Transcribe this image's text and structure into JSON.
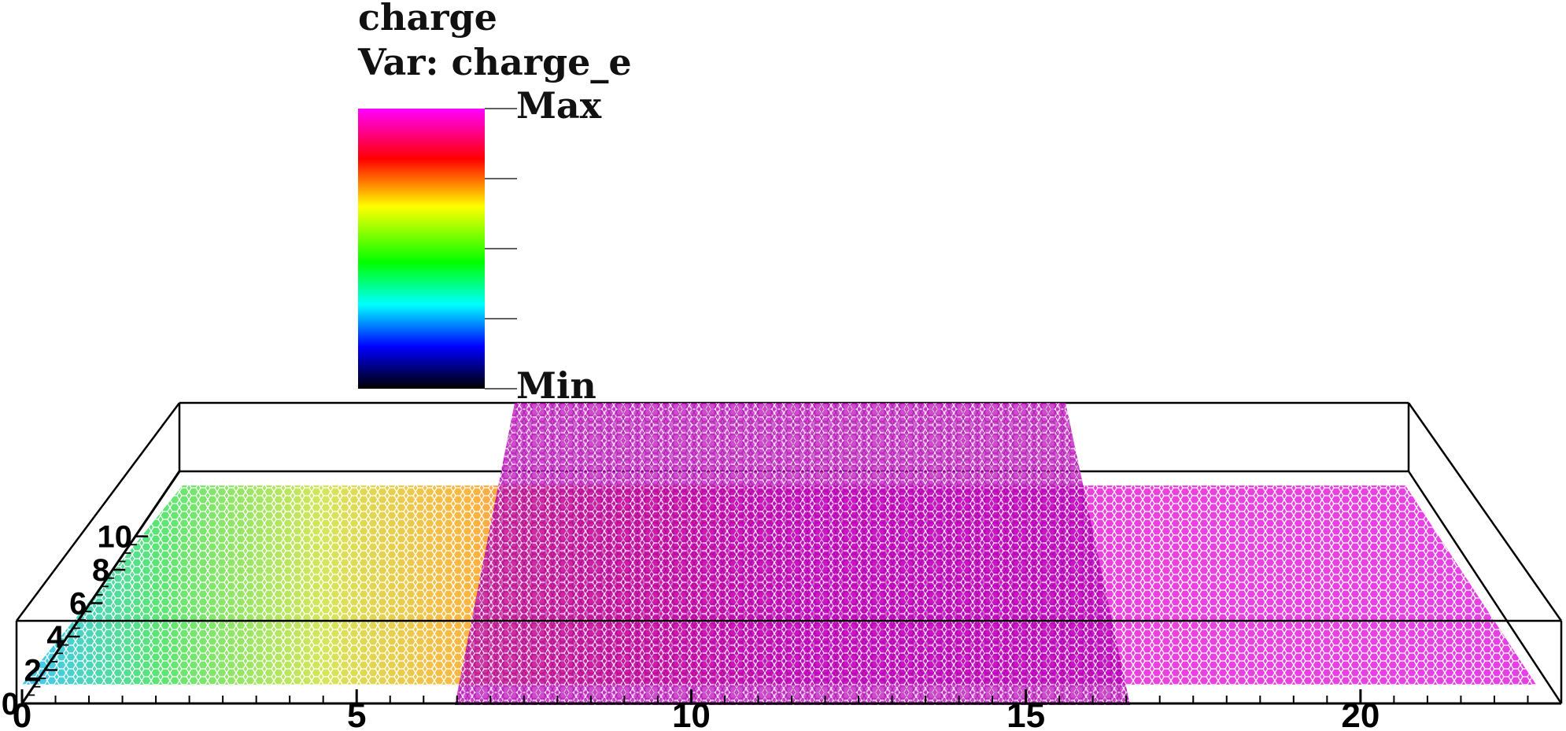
{
  "chart_data": {
    "type": "heatmap",
    "plot_kind": "3D pseudocolor plot of a lattice (hexagonal) mesh",
    "legend": {
      "title": "charge",
      "variable_label": "Var: charge_e",
      "max_label": "Max",
      "min_label": "Min",
      "colormap": [
        "#ff00ff",
        "#ff0000",
        "#ffff00",
        "#00ff00",
        "#00ffff",
        "#0000ff",
        "#000000"
      ]
    },
    "x_axis": {
      "range": [
        0,
        23
      ],
      "major_ticks": [
        0,
        5,
        10,
        15,
        20
      ],
      "minor_step": 0.5
    },
    "y_axis": {
      "range": [
        0,
        10
      ],
      "major_ticks": [
        0,
        2,
        4,
        6,
        8,
        10
      ],
      "minor_step": 0.5
    },
    "regions": [
      {
        "name": "base-sheet",
        "x_range": [
          0,
          23
        ],
        "y_range": [
          0,
          10
        ],
        "gradient": [
          "#00c8ff",
          "#33dd33",
          "#dddd00",
          "#ff3300",
          "#e600e6"
        ]
      },
      {
        "name": "overlay-sheet",
        "x_range": [
          7,
          17
        ],
        "y_range": [
          0,
          10
        ],
        "color": "#cc00cc"
      }
    ],
    "colors": {
      "bounding_box": "#000000",
      "overlay": "#c400c4",
      "lattice_right": "#d21ed2"
    }
  }
}
